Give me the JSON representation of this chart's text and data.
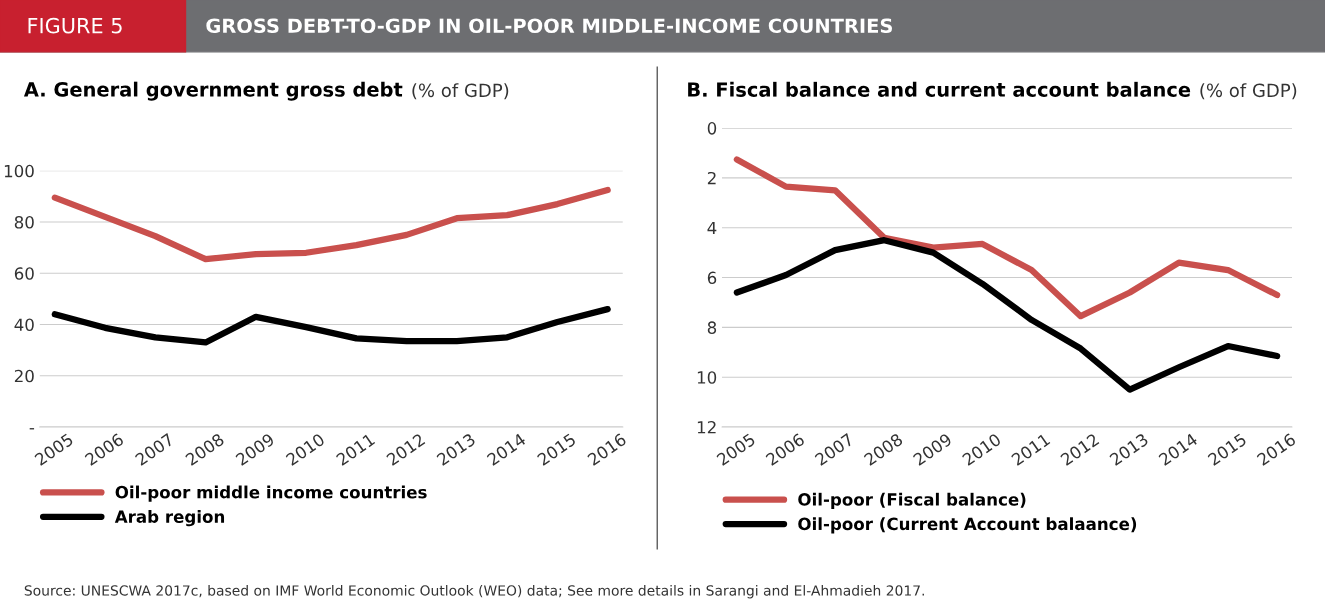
{
  "chart_data": [
    {
      "type": "line",
      "title": "A. General government gross debt",
      "subtitle": "(% of GDP)",
      "annotations": [
        "FIGURE 5",
        "GROSS DEBT-TO-GDP IN OIL-POOR MIDDLE-INCOME COUNTRIES",
        "Source: UNESCWA 2017c, based on IMF World Economic Outlook (WEO) data; See more details in Sarangi and El-Ahmadieh 2017."
      ],
      "categories": [
        "2005",
        "2006",
        "2007",
        "2008",
        "2009",
        "2010",
        "2011",
        "2012",
        "2013",
        "2014",
        "2015",
        "2016"
      ],
      "series": [
        {
          "name": "Oil-poor middle income countries",
          "color": "#c9504d",
          "values": [
            89.5,
            82,
            74.5,
            65.5,
            67.5,
            68,
            71,
            75,
            81.5,
            82.7,
            87,
            92.5
          ]
        },
        {
          "name": "Arab region",
          "color": "#000000",
          "values": [
            44,
            38.7,
            35,
            33,
            43,
            39,
            34.6,
            33.5,
            33.5,
            35,
            41,
            46
          ]
        }
      ],
      "ylim": [
        0,
        100
      ],
      "yticks": [
        {
          "value": 0,
          "label": "-"
        },
        20,
        40,
        60,
        80,
        100
      ],
      "grid": "y",
      "legend": "bottom",
      "line_style": "solid"
    },
    {
      "type": "line",
      "title": "B. Fiscal balance and current account balance",
      "subtitle": "(% of GDP)",
      "categories": [
        "2005",
        "2006",
        "2007",
        "2008",
        "2009",
        "2010",
        "2011",
        "2012",
        "2013",
        "2014",
        "2015",
        "2016"
      ],
      "series": [
        {
          "name": "Oil-poor (Fiscal balance)",
          "color": "#c9504d",
          "values": [
            1.26,
            2.35,
            2.5,
            4.4,
            4.8,
            4.65,
            5.7,
            7.55,
            6.6,
            5.4,
            5.7,
            6.7
          ]
        },
        {
          "name": "Oil-poor (Current Account balaance)",
          "color": "#000000",
          "values": [
            6.6,
            5.9,
            4.9,
            4.5,
            5.0,
            6.25,
            7.7,
            8.85,
            10.5,
            9.6,
            8.75,
            9.15
          ]
        }
      ],
      "ylim": [
        12,
        0
      ],
      "yticks": [
        0,
        2,
        4,
        6,
        8,
        10,
        12
      ],
      "grid": "y",
      "legend": "bottom",
      "line_style": "solid"
    }
  ]
}
